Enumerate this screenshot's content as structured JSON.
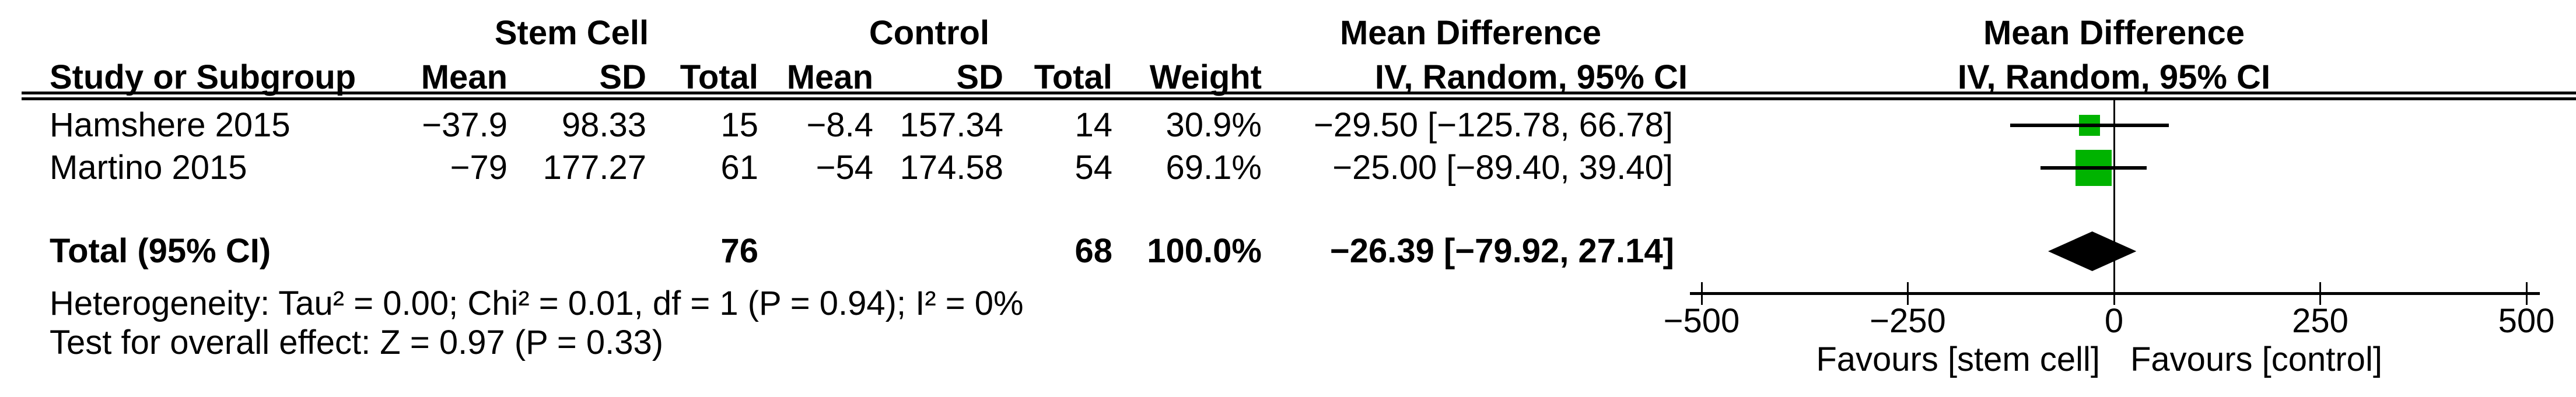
{
  "table": {
    "group1_header": "Stem Cell",
    "group2_header": "Control",
    "effect_header_line1": "Mean Difference",
    "effect_header_line2": "IV, Random, 95% CI",
    "plot_header_line1": "Mean Difference",
    "plot_header_line2": "IV, Random, 95% CI",
    "columns": [
      "Study or Subgroup",
      "Mean",
      "SD",
      "Total",
      "Mean",
      "SD",
      "Total",
      "Weight",
      "IV, Random, 95% CI"
    ],
    "rows": [
      {
        "study": "Hamshere 2015",
        "mean1": "−37.9",
        "sd1": "98.33",
        "total1": "15",
        "mean2": "−8.4",
        "sd2": "157.34",
        "total2": "14",
        "weight": "30.9%",
        "ci": "−29.50 [−125.78, 66.78]"
      },
      {
        "study": "Martino 2015",
        "mean1": "−79",
        "sd1": "177.27",
        "total1": "61",
        "mean2": "−54",
        "sd2": "174.58",
        "total2": "54",
        "weight": "69.1%",
        "ci": "−25.00 [−89.40, 39.40]"
      }
    ],
    "total_row": {
      "label": "Total (95% CI)",
      "total1": "76",
      "total2": "68",
      "weight": "100.0%",
      "ci": "−26.39 [−79.92, 27.14]"
    },
    "footer": {
      "heterogeneity": "Heterogeneity: Tau² = 0.00; Chi² = 0.01, df = 1 (P = 0.94); I² = 0%",
      "overall_effect": "Test for overall effect: Z = 0.97 (P = 0.33)"
    }
  },
  "chart_data": {
    "type": "forest",
    "effect_measure": "Mean Difference, IV, Random, 95% CI",
    "studies": [
      {
        "label": "Hamshere 2015",
        "md": -29.5,
        "ci_low": -125.78,
        "ci_high": 66.78,
        "weight_pct": 30.9
      },
      {
        "label": "Martino 2015",
        "md": -25.0,
        "ci_low": -89.4,
        "ci_high": 39.4,
        "weight_pct": 69.1
      }
    ],
    "total": {
      "label": "Total (95% CI)",
      "md": -26.39,
      "ci_low": -79.92,
      "ci_high": 27.14,
      "weight_pct": 100.0
    },
    "axis": {
      "min": -500,
      "max": 500,
      "ticks": [
        -500,
        -250,
        0,
        250,
        500
      ]
    },
    "favours_left": "Favours [stem cell]",
    "favours_right": "Favours [control]",
    "marker_color": "#00b300",
    "diamond_color": "#000000",
    "line_color": "#000000"
  }
}
